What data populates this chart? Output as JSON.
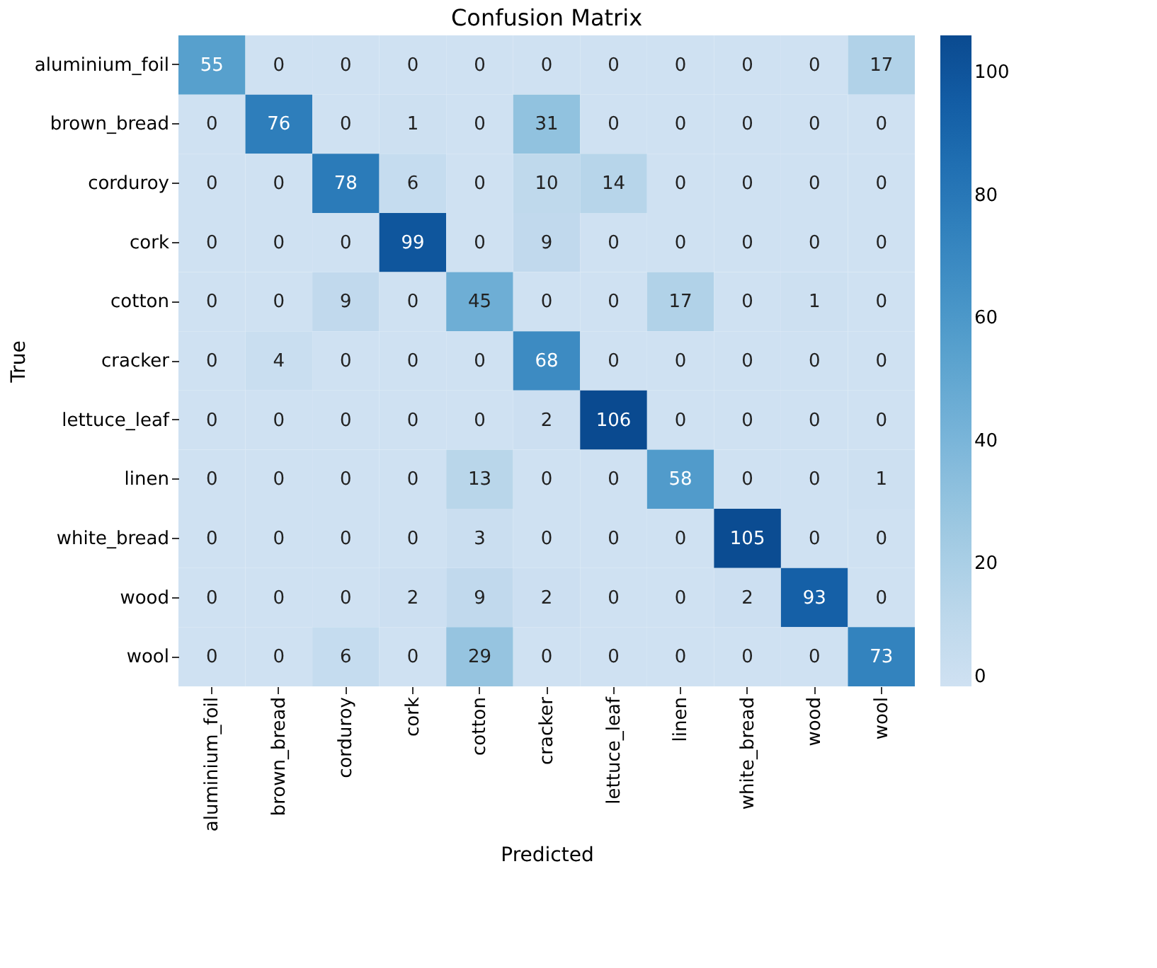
{
  "chart_data": {
    "type": "heatmap",
    "title": "Confusion Matrix",
    "xlabel": "Predicted",
    "ylabel": "True",
    "categories": [
      "aluminium_foil",
      "brown_bread",
      "corduroy",
      "cork",
      "cotton",
      "cracker",
      "lettuce_leaf",
      "linen",
      "white_bread",
      "wood",
      "wool"
    ],
    "y_categories": [
      "aluminium_foil",
      "brown_bread",
      "corduroy",
      "cork",
      "cotton",
      "cracker",
      "lettuce_leaf",
      "linen",
      "white_bread",
      "wood",
      "wool"
    ],
    "cells": [
      [
        55,
        0,
        0,
        0,
        0,
        0,
        0,
        0,
        0,
        0,
        17
      ],
      [
        0,
        76,
        0,
        1,
        0,
        31,
        0,
        0,
        0,
        0,
        0
      ],
      [
        0,
        0,
        78,
        6,
        0,
        10,
        14,
        0,
        0,
        0,
        0
      ],
      [
        0,
        0,
        0,
        99,
        0,
        9,
        0,
        0,
        0,
        0,
        0
      ],
      [
        0,
        0,
        9,
        0,
        45,
        0,
        0,
        17,
        0,
        1,
        0
      ],
      [
        0,
        4,
        0,
        0,
        0,
        68,
        0,
        0,
        0,
        0,
        0
      ],
      [
        0,
        0,
        0,
        0,
        0,
        2,
        106,
        0,
        0,
        0,
        0
      ],
      [
        0,
        0,
        0,
        0,
        13,
        0,
        0,
        58,
        0,
        0,
        1
      ],
      [
        0,
        0,
        0,
        0,
        3,
        0,
        0,
        0,
        105,
        0,
        0
      ],
      [
        0,
        0,
        0,
        2,
        9,
        2,
        0,
        0,
        2,
        93,
        0
      ],
      [
        0,
        0,
        6,
        0,
        29,
        0,
        0,
        0,
        0,
        0,
        73
      ]
    ],
    "clim": [
      0,
      106
    ],
    "cticks": [
      0,
      20,
      40,
      60,
      80,
      100
    ],
    "data_labels": true,
    "grid": false
  }
}
